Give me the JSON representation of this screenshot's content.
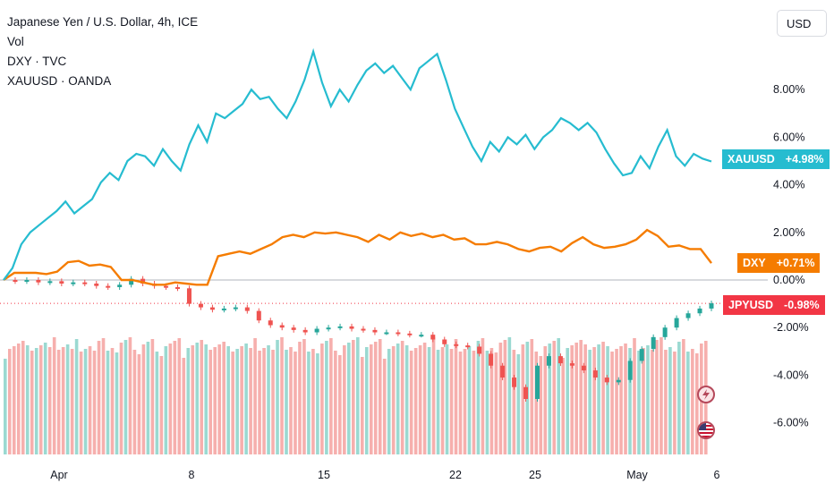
{
  "header": {
    "main_symbol": "Japanese Yen / U.S. Dollar, 4h, ICE",
    "overlays": [
      "Vol",
      "DXY · TVC",
      "XAUUSD · OANDA"
    ],
    "currency_button": "USD"
  },
  "colors": {
    "xauusd": "#26BCD0",
    "dxy": "#F57C00",
    "up": "#26A69A",
    "down": "#EF5350",
    "vol_up": "#9BD9D1",
    "vol_down": "#F6AFAD"
  },
  "tags": {
    "xauusd": {
      "name": "XAUUSD",
      "value": "+4.98%"
    },
    "dxy": {
      "name": "DXY",
      "value": "+0.71%"
    },
    "jpyusd": {
      "name": "JPYUSD",
      "value": "-0.98%"
    }
  },
  "chart_data": {
    "type": "line",
    "title": "Japanese Yen / U.S. Dollar, 4h, ICE",
    "ylabel": "",
    "y_unit": "%",
    "ylim": [
      -6.8,
      10.5
    ],
    "y_ticks": [
      "8.00%",
      "6.00%",
      "4.00%",
      "2.00%",
      "0.00%",
      "-2.00%",
      "-4.00%",
      "-6.00%"
    ],
    "x_ticks": [
      "Apr",
      "8",
      "15",
      "22",
      "25",
      "May",
      "6"
    ],
    "series": [
      {
        "name": "XAUUSD",
        "last_label": "+4.98%",
        "values": [
          0,
          0.5,
          1.5,
          2.0,
          2.3,
          2.6,
          2.9,
          3.3,
          2.8,
          3.1,
          3.4,
          4.1,
          4.5,
          4.2,
          5.0,
          5.3,
          5.2,
          4.8,
          5.5,
          5.0,
          4.6,
          5.7,
          6.5,
          5.8,
          7.0,
          6.8,
          7.1,
          7.4,
          8.0,
          7.6,
          7.7,
          7.2,
          6.8,
          7.5,
          8.4,
          9.6,
          8.3,
          7.3,
          8.0,
          7.5,
          8.2,
          8.8,
          9.1,
          8.7,
          9.0,
          8.5,
          8.0,
          8.9,
          9.2,
          9.5,
          8.4,
          7.2,
          6.4,
          5.6,
          5.0,
          5.8,
          5.4,
          6.0,
          5.7,
          6.1,
          5.5,
          6.0,
          6.3,
          6.8,
          6.6,
          6.3,
          6.6,
          6.2,
          5.5,
          4.9,
          4.4,
          4.5,
          5.2,
          4.7,
          5.6,
          6.3,
          5.2,
          4.8,
          5.3,
          5.1,
          4.98
        ]
      },
      {
        "name": "DXY",
        "last_label": "+0.71%",
        "values": [
          0,
          0.3,
          0.3,
          0.3,
          0.25,
          0.35,
          0.75,
          0.8,
          0.6,
          0.65,
          0.55,
          0,
          0,
          -0.1,
          -0.2,
          -0.2,
          -0.1,
          -0.15,
          -0.2,
          -0.2,
          1.0,
          1.1,
          1.2,
          1.1,
          1.3,
          1.5,
          1.8,
          1.9,
          1.8,
          2.0,
          1.95,
          2.0,
          1.9,
          1.8,
          1.6,
          1.9,
          1.7,
          2.0,
          1.85,
          1.95,
          1.8,
          1.9,
          1.7,
          1.75,
          1.5,
          1.5,
          1.6,
          1.5,
          1.3,
          1.2,
          1.35,
          1.4,
          1.2,
          1.55,
          1.8,
          1.5,
          1.35,
          1.4,
          1.5,
          1.7,
          2.1,
          1.85,
          1.4,
          1.45,
          1.3,
          1.3,
          0.71
        ]
      },
      {
        "name": "JPYUSD",
        "last_label": "-0.98%",
        "values": [
          0,
          -0.05,
          0,
          -0.1,
          -0.05,
          -0.15,
          -0.1,
          -0.15,
          -0.25,
          -0.3,
          -0.2,
          0.05,
          -0.15,
          -0.25,
          -0.3,
          -0.35,
          -1.0,
          -1.15,
          -1.25,
          -1.2,
          -1.15,
          -1.3,
          -1.7,
          -1.9,
          -2.0,
          -2.1,
          -2.2,
          -2.05,
          -2.0,
          -1.95,
          -2.05,
          -2.1,
          -2.2,
          -2.2,
          -2.25,
          -2.3,
          -2.3,
          -2.5,
          -2.7,
          -2.75,
          -2.8,
          -3.1,
          -3.6,
          -4.1,
          -4.5,
          -5.0,
          -3.6,
          -3.2,
          -3.5,
          -3.6,
          -3.8,
          -4.1,
          -4.3,
          -4.2,
          -3.4,
          -2.9,
          -2.4,
          -2.0,
          -1.6,
          -1.4,
          -1.2,
          -0.98
        ]
      }
    ],
    "volume": "relative bars, red and green by candle direction",
    "events": [
      "lightning-icon",
      "us-flag-icon"
    ],
    "grid": false,
    "legend": "top-left"
  }
}
